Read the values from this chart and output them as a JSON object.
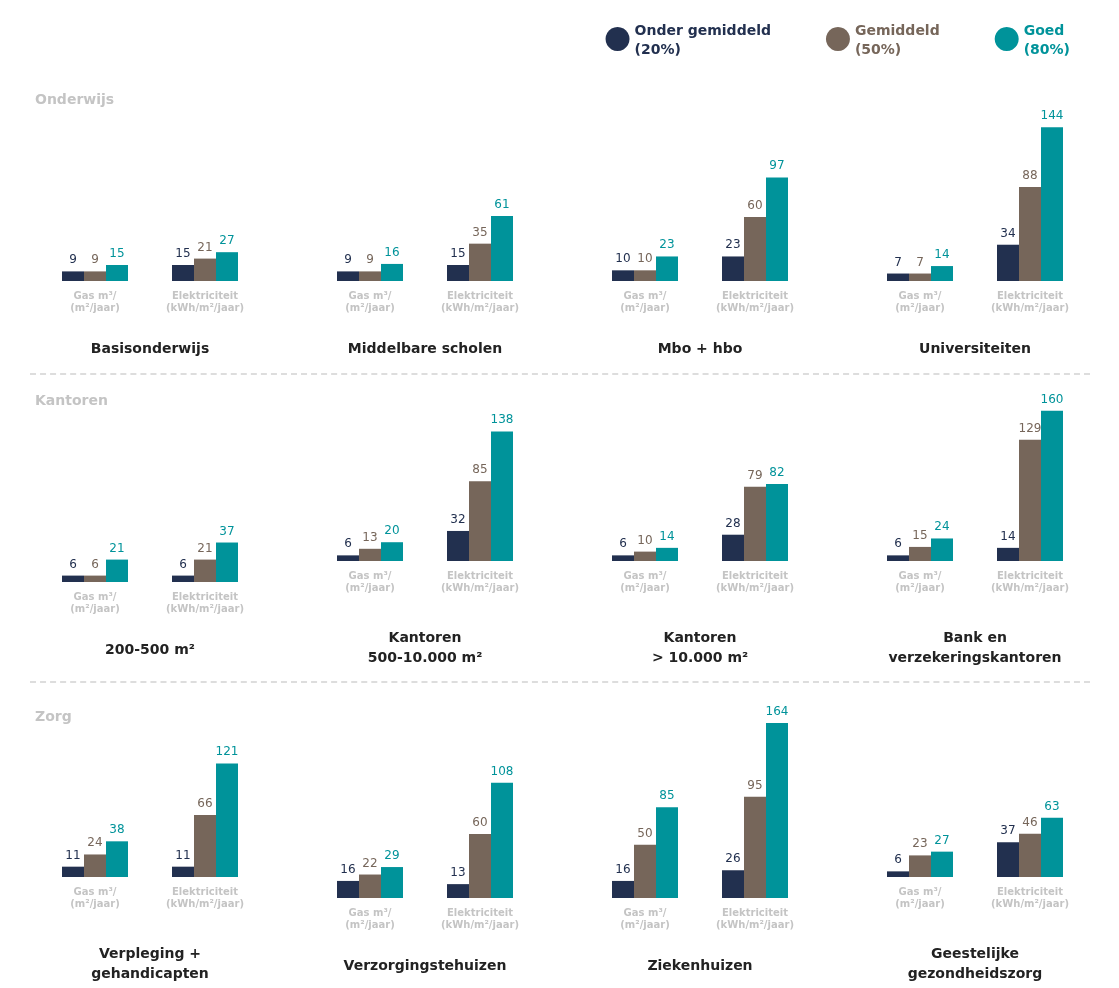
{
  "chart_data": [
    {
      "type": "bar",
      "title": "Onderwijs",
      "xlabel": "Basisonderwijs",
      "categories": [
        "Gas m³/\n(m²/jaar)",
        "Elektriciteit\n(kWh/m²/jaar)"
      ],
      "data_labels": true,
      "series": [
        {
          "color": "#22304f",
          "values": [
            9,
            15
          ]
        },
        {
          "color": "#76665a",
          "values": [
            9,
            21
          ]
        },
        {
          "color": "#00939a",
          "values": [
            15,
            27
          ]
        }
      ]
    },
    {
      "type": "bar",
      "xlabel": "Middelbare scholen",
      "categories": [
        "Gas m³/\n(m²/jaar)",
        "Elektriciteit\n(kWh/m²/jaar)"
      ],
      "data_labels": true,
      "series": [
        {
          "color": "#22304f",
          "values": [
            9,
            15
          ]
        },
        {
          "color": "#76665a",
          "values": [
            9,
            35
          ]
        },
        {
          "color": "#00939a",
          "values": [
            16,
            61
          ]
        }
      ]
    },
    {
      "type": "bar",
      "xlabel": "Mbo + hbo",
      "categories": [
        "Gas m³/\n(m²/jaar)",
        "Elektriciteit\n(kWh/m²/jaar)"
      ],
      "data_labels": true,
      "series": [
        {
          "color": "#22304f",
          "values": [
            10,
            23
          ]
        },
        {
          "color": "#76665a",
          "values": [
            10,
            60
          ]
        },
        {
          "color": "#00939a",
          "values": [
            23,
            97
          ]
        }
      ]
    },
    {
      "type": "bar",
      "xlabel": "Universiteiten",
      "legend": "top",
      "categories": [
        "Gas m³/\n(m²/jaar)",
        "Elektriciteit\n(kWh/m²/jaar)"
      ],
      "data_labels": true,
      "series": [
        {
          "name": "Onder gemiddeld\n(20%)",
          "color": "#22304f",
          "values": [
            7,
            34
          ]
        },
        {
          "name": "Gemiddeld\n(50%)",
          "color": "#76665a",
          "values": [
            7,
            88
          ]
        },
        {
          "name": "Goed\n(80%)",
          "color": "#00939a",
          "values": [
            14,
            144
          ]
        }
      ]
    },
    {
      "type": "bar",
      "title": "Kantoren",
      "xlabel": "200-500 m²",
      "categories": [
        "Gas m³/\n(m²/jaar)",
        "Elektriciteit\n(kWh/m²/jaar)"
      ],
      "data_labels": true,
      "series": [
        {
          "color": "#22304f",
          "values": [
            6,
            6
          ]
        },
        {
          "color": "#76665a",
          "values": [
            6,
            21
          ]
        },
        {
          "color": "#00939a",
          "values": [
            21,
            37
          ]
        }
      ]
    },
    {
      "type": "bar",
      "xlabel": "Kantoren\n500-10.000 m²",
      "categories": [
        "Gas m³/\n(m²/jaar)",
        "Elektriciteit\n(kWh/m²/jaar)"
      ],
      "data_labels": true,
      "series": [
        {
          "color": "#22304f",
          "values": [
            6,
            32
          ]
        },
        {
          "color": "#76665a",
          "values": [
            13,
            85
          ]
        },
        {
          "color": "#00939a",
          "values": [
            20,
            138
          ]
        }
      ]
    },
    {
      "type": "bar",
      "xlabel": "Kantoren\n> 10.000 m²",
      "categories": [
        "Gas m³/\n(m²/jaar)",
        "Elektriciteit\n(kWh/m²/jaar)"
      ],
      "data_labels": true,
      "series": [
        {
          "color": "#22304f",
          "values": [
            6,
            28
          ]
        },
        {
          "color": "#76665a",
          "values": [
            10,
            79
          ]
        },
        {
          "color": "#00939a",
          "values": [
            14,
            82
          ]
        }
      ]
    },
    {
      "type": "bar",
      "xlabel": "Bank en\nverzekeringskantoren",
      "categories": [
        "Gas m³/\n(m²/jaar)",
        "Elektriciteit\n(kWh/m²/jaar)"
      ],
      "data_labels": true,
      "series": [
        {
          "color": "#22304f",
          "values": [
            6,
            14
          ]
        },
        {
          "color": "#76665a",
          "values": [
            15,
            129
          ]
        },
        {
          "color": "#00939a",
          "values": [
            24,
            160
          ]
        }
      ]
    },
    {
      "type": "bar",
      "title": "Zorg",
      "xlabel": "Verpleging +\ngehandicapten",
      "categories": [
        "Gas m³/\n(m²/jaar)",
        "Elektriciteit\n(kWh/m²/jaar)"
      ],
      "data_labels": true,
      "series": [
        {
          "color": "#22304f",
          "values": [
            11,
            11
          ]
        },
        {
          "color": "#76665a",
          "values": [
            24,
            66
          ]
        },
        {
          "color": "#00939a",
          "values": [
            38,
            121
          ]
        }
      ]
    },
    {
      "type": "bar",
      "xlabel": "Verzorgingstehuizen",
      "categories": [
        "Gas m³/\n(m²/jaar)",
        "Elektriciteit\n(kWh/m²/jaar)"
      ],
      "data_labels": true,
      "series": [
        {
          "color": "#22304f",
          "values": [
            16,
            13
          ]
        },
        {
          "color": "#76665a",
          "values": [
            22,
            60
          ]
        },
        {
          "color": "#00939a",
          "values": [
            29,
            108
          ]
        }
      ]
    },
    {
      "type": "bar",
      "xlabel": "Ziekenhuizen",
      "categories": [
        "Gas m³/\n(m²/jaar)",
        "Elektriciteit\n(kWh/m²/jaar)"
      ],
      "data_labels": true,
      "series": [
        {
          "color": "#22304f",
          "values": [
            16,
            26
          ]
        },
        {
          "color": "#76665a",
          "values": [
            50,
            95
          ]
        },
        {
          "color": "#00939a",
          "values": [
            85,
            164
          ]
        }
      ]
    },
    {
      "type": "bar",
      "xlabel": "Geestelijke\ngezondheidszorg",
      "categories": [
        "Gas m³/\n(m²/jaar)",
        "Elektriciteit\n(kWh/m²/jaar)"
      ],
      "data_labels": true,
      "series": [
        {
          "color": "#22304f",
          "values": [
            6,
            37
          ]
        },
        {
          "color": "#76665a",
          "values": [
            23,
            46
          ]
        },
        {
          "color": "#00939a",
          "values": [
            27,
            63
          ]
        }
      ]
    }
  ]
}
